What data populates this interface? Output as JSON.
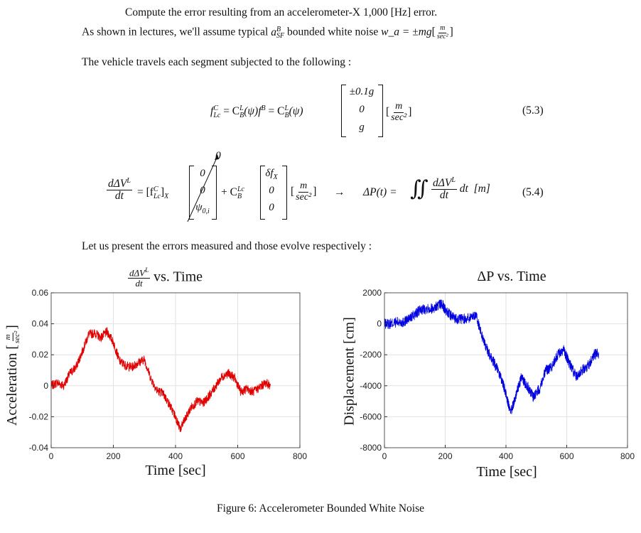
{
  "intro": {
    "line1": "Compute the error resulting from an accelerometer-X 1,000 [Hz] error.",
    "line2_pre": "As shown in lectures, we'll assume typical",
    "line2_sym": "a",
    "line2_sup": "B",
    "line2_sub": "SF",
    "line2_mid": "bounded white noise",
    "line2_eq": "w_a = ±mg",
    "line2_unit_num": "m",
    "line2_unit_den": "sec²",
    "line3": "The vehicle travels each segment subjected to the following :"
  },
  "eq53": {
    "lhs": "f",
    "lhs_sup": "C",
    "lhs_sub": "Lc",
    "rhs1": "= C",
    "rhs1_sup": "L",
    "rhs1_sub": "B",
    "rhs1_arg": "(ψ)f",
    "rhs1_fsup": "B",
    "rhs2": "= C",
    "rhs2_arg": "(ψ)",
    "vec": [
      "±0.1g",
      "0",
      "g"
    ],
    "unit_num": "m",
    "unit_den": "sec²",
    "number": "(5.3)"
  },
  "eq54": {
    "lhs_num": "dΔV",
    "lhs_num_sup": "L",
    "lhs_den": "dt",
    "term1": "= [f",
    "term1_sup": "C",
    "term1_sub": "Lc",
    "term1_end": "]",
    "term1_x": "X",
    "vec1": [
      "0",
      "0",
      "ψ"
    ],
    "vec1_psi_sub": "0,i",
    "arrow_label": "0",
    "term2": "+ C",
    "term2_sup": "Lc",
    "term2_sub": "B",
    "vec2": [
      "δf",
      "0",
      "0"
    ],
    "vec2_sub": "X",
    "unit_num": "m",
    "unit_den": "sec²",
    "arrow": "→",
    "dp": "ΔP(t) =",
    "integral": "∬",
    "int_num": "dΔV",
    "int_num_sup": "L",
    "int_den": "dt",
    "int_tail": "dt",
    "int_unit": "[m]",
    "number": "(5.4)"
  },
  "present": "Let us present the errors measured and those evolve respectively :",
  "caption": "Figure 6: Accelerometer Bounded White Noise",
  "chart_data": [
    {
      "type": "line",
      "title": "dΔV^L/dt vs. Time",
      "title_num": "dΔV",
      "title_num_sup": "L",
      "title_den": "dt",
      "title_tail": "vs.  Time",
      "xlabel": "Time [sec]",
      "ylabel": "Acceleration",
      "ylabel_unit_num": "m",
      "ylabel_unit_den": "sec²",
      "xlim": [
        0,
        800
      ],
      "ylim": [
        -0.04,
        0.06
      ],
      "xticks": [
        0,
        200,
        400,
        600,
        800
      ],
      "yticks": [
        -0.04,
        -0.02,
        0,
        0.02,
        0.04,
        0.06
      ],
      "ytick_labels": [
        "-0.04",
        "-0.02",
        "0",
        "0.02",
        "0.04",
        "0.06"
      ],
      "grid": true,
      "color": "#e00000",
      "series": [
        {
          "x": [
            0,
            20,
            40,
            60,
            80,
            100,
            120,
            140,
            160,
            180,
            200,
            220,
            240,
            260,
            280,
            300,
            320,
            340,
            360,
            380,
            400,
            415,
            430,
            450,
            470,
            490,
            510,
            530,
            550,
            570,
            590,
            610,
            630,
            650,
            670,
            690,
            705
          ],
          "y": [
            0.0,
            0.002,
            0.0,
            0.008,
            0.012,
            0.022,
            0.033,
            0.034,
            0.031,
            0.035,
            0.028,
            0.016,
            0.013,
            0.012,
            0.015,
            0.017,
            0.005,
            -0.003,
            -0.005,
            -0.012,
            -0.02,
            -0.028,
            -0.022,
            -0.014,
            -0.01,
            -0.011,
            -0.006,
            0.0,
            0.006,
            0.008,
            0.005,
            -0.004,
            -0.002,
            -0.004,
            -0.001,
            0.002,
            0.0
          ]
        }
      ]
    },
    {
      "type": "line",
      "title": "ΔP vs. Time",
      "xlabel": "Time [sec]",
      "ylabel": "Displacement [cm]",
      "xlim": [
        0,
        800
      ],
      "ylim": [
        -8000,
        2000
      ],
      "xticks": [
        0,
        200,
        400,
        600,
        800
      ],
      "yticks": [
        -8000,
        -6000,
        -4000,
        -2000,
        0,
        2000
      ],
      "ytick_labels": [
        "-8000",
        "-6000",
        "-4000",
        "-2000",
        "0",
        "2000"
      ],
      "grid": true,
      "color": "#0000e0",
      "series": [
        {
          "x": [
            0,
            20,
            40,
            60,
            80,
            100,
            120,
            140,
            160,
            180,
            190,
            200,
            220,
            240,
            260,
            280,
            300,
            320,
            340,
            360,
            380,
            400,
            415,
            430,
            450,
            470,
            490,
            510,
            530,
            550,
            570,
            590,
            610,
            630,
            650,
            670,
            690,
            705
          ],
          "y": [
            0,
            0,
            100,
            100,
            300,
            600,
            900,
            1000,
            1000,
            1200,
            1300,
            900,
            500,
            300,
            300,
            400,
            600,
            -700,
            -1800,
            -2500,
            -3300,
            -4500,
            -5800,
            -4800,
            -3500,
            -4000,
            -4700,
            -4200,
            -3000,
            -2800,
            -2000,
            -1700,
            -2600,
            -3400,
            -3000,
            -2700,
            -2000,
            -1900
          ]
        }
      ]
    }
  ]
}
